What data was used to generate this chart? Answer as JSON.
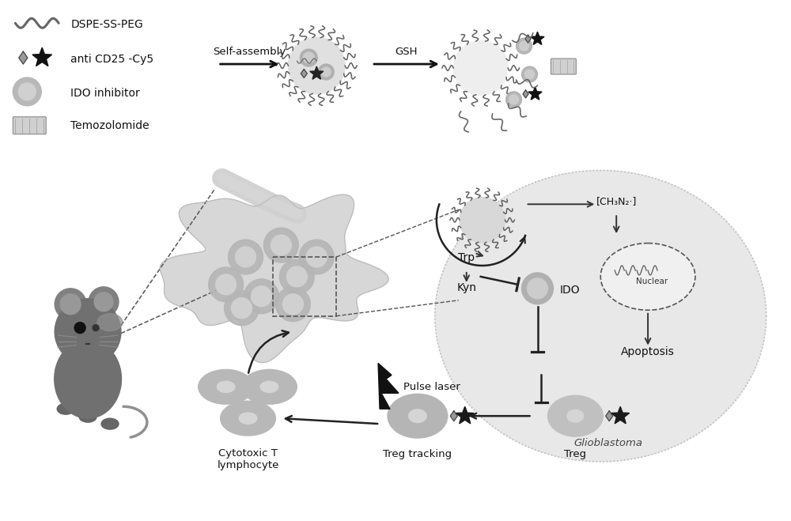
{
  "background_color": "#ffffff",
  "legend_items": [
    {
      "label": "DSPE-SS-PEG"
    },
    {
      "label": "anti CD25 -Cy5"
    },
    {
      "label": "IDO inhibitor"
    },
    {
      "label": "Temozolomide"
    }
  ],
  "arrow_labels": [
    "Self-assembly",
    "GSH"
  ],
  "text_labels": {
    "trp": "Trp",
    "kyn": "Kyn",
    "ido": "IDO",
    "ch2n2": "[CH₃N₂·]",
    "nuclear": "Nuclear",
    "apoptosis": "Apoptosis",
    "glioblastoma": "Glioblastoma",
    "pulse": "Pulse laser",
    "treg_track": "Treg tracking",
    "treg": "Treg",
    "cyto": "Cytotoxic T\nlymphocyte"
  },
  "colors": {
    "black": "#1a1a1a",
    "dark_gray": "#555555",
    "mid_gray": "#888888",
    "light_gray": "#b0b0b0",
    "very_light_gray": "#d8d8d8",
    "cell_gray": "#aaaaaa",
    "mouse_body": "#707070",
    "mouse_dark": "#505050",
    "tumor_bg": "#d0d0d0",
    "gbm_fill": "#e2e2e2",
    "white": "#ffffff"
  }
}
